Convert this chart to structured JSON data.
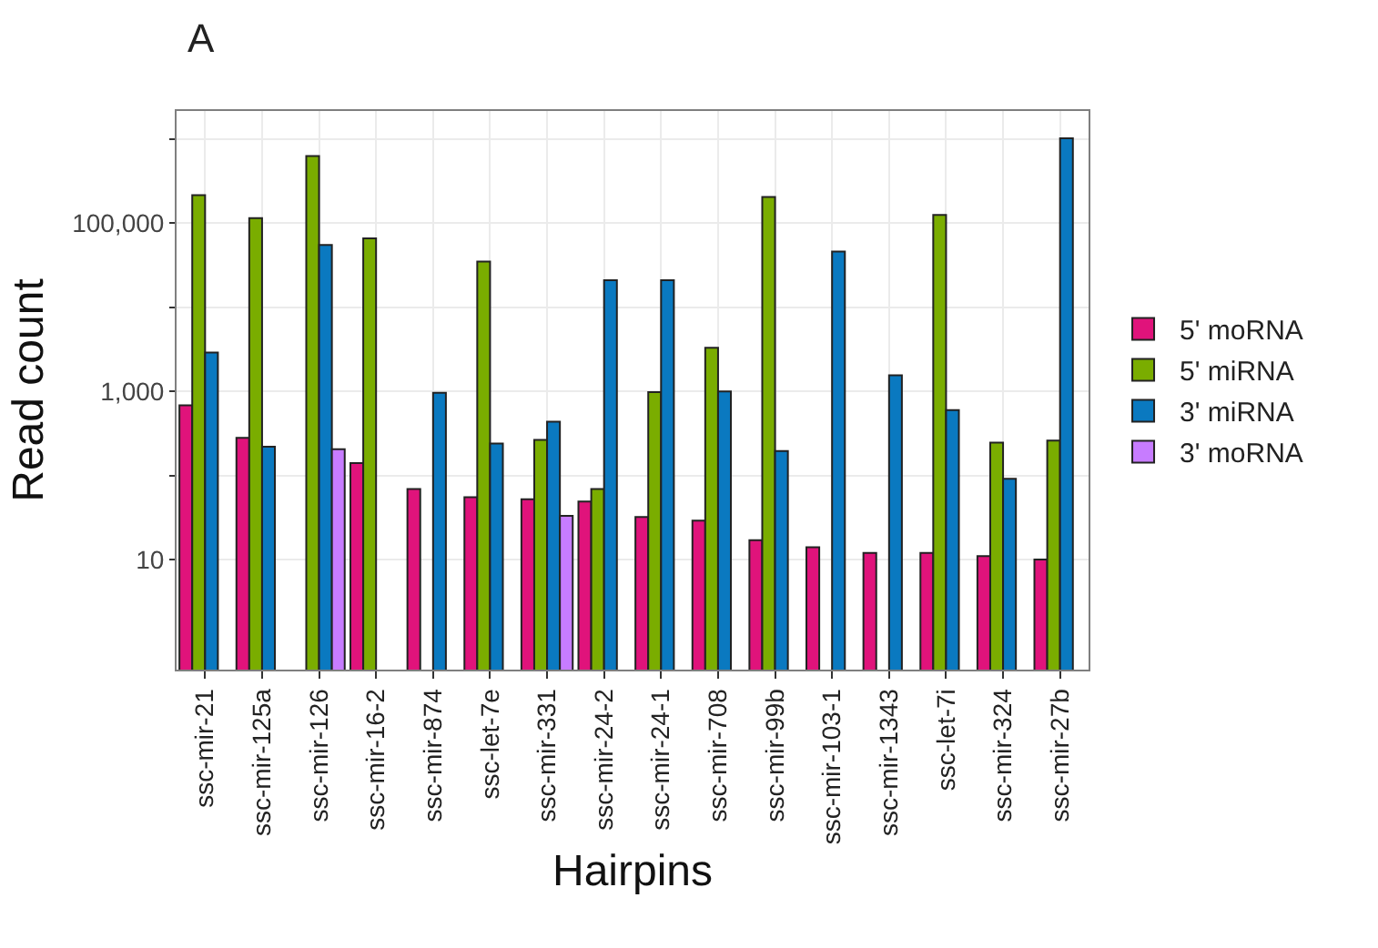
{
  "chart_data": {
    "type": "bar",
    "title": "A",
    "xlabel": "Hairpins",
    "ylabel": "Read count",
    "categories": [
      "ssc-mir-21",
      "ssc-mir-125a",
      "ssc-mir-126",
      "ssc-mir-16-2",
      "ssc-mir-874",
      "ssc-let-7e",
      "ssc-mir-331",
      "ssc-mir-24-2",
      "ssc-mir-24-1",
      "ssc-mir-708",
      "ssc-mir-99b",
      "ssc-mir-103-1",
      "ssc-mir-1343",
      "ssc-let-7i",
      "ssc-mir-324",
      "ssc-mir-27b"
    ],
    "series": [
      {
        "name": "5' moRNA",
        "color": "#e0137b",
        "values": [
          680,
          280,
          null,
          140,
          69,
          55,
          52,
          49,
          32,
          29,
          17,
          14,
          12,
          12,
          11,
          10
        ]
      },
      {
        "name": "5' miRNA",
        "color": "#7aad00",
        "values": [
          215000,
          115000,
          630000,
          66000,
          null,
          35000,
          265,
          69,
          980,
          3300,
          205000,
          null,
          null,
          125000,
          245,
          260
        ]
      },
      {
        "name": "3' miRNA",
        "color": "#0a79c0",
        "values": [
          2900,
          220,
          55000,
          null,
          960,
          240,
          435,
          21000,
          21000,
          1000,
          195,
          46000,
          1550,
          600,
          91,
          1020000
        ]
      },
      {
        "name": "3' moRNA",
        "color": "#c77cff",
        "values": [
          null,
          null,
          205,
          null,
          null,
          null,
          33,
          null,
          null,
          null,
          null,
          null,
          null,
          null,
          null,
          null
        ]
      }
    ],
    "log": true,
    "ylim": [
      0.49,
      2160000
    ],
    "yticks": [
      10,
      {
        "value": 100,
        "label": null
      },
      {
        "value": 1000,
        "label": "1,000"
      },
      {
        "value": 10000,
        "label": null
      },
      {
        "value": 100000,
        "label": "100,000"
      },
      {
        "value": 1000000,
        "label": null
      }
    ],
    "grid": true,
    "legend": "right"
  }
}
